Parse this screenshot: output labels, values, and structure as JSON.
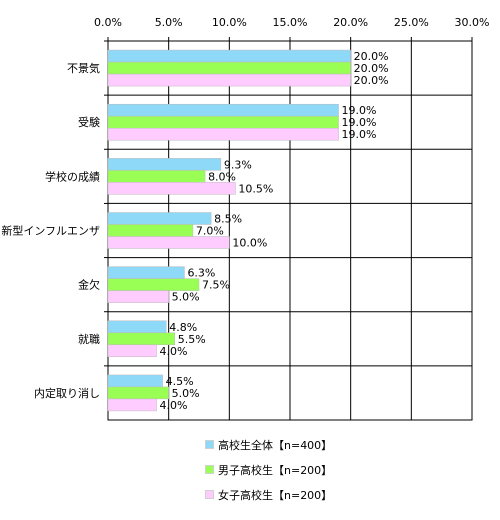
{
  "chart_data": {
    "type": "bar",
    "orientation": "horizontal",
    "categories": [
      "不景気",
      "受験",
      "学校の成績",
      "新型インフルエンザ",
      "金欠",
      "就職",
      "内定取り消し"
    ],
    "series": [
      {
        "name": "高校生全体【n=400】",
        "color": "#8ed8f8",
        "values": [
          20.0,
          19.0,
          9.3,
          8.5,
          6.3,
          4.8,
          4.5
        ]
      },
      {
        "name": "男子高校生【n=200】",
        "color": "#99ff55",
        "values": [
          20.0,
          19.0,
          8.0,
          7.0,
          7.5,
          5.5,
          5.0
        ]
      },
      {
        "name": "女子高校生【n=200】",
        "color": "#ffccff",
        "values": [
          20.0,
          19.0,
          10.5,
          10.0,
          5.0,
          4.0,
          4.0
        ]
      }
    ],
    "xlim": [
      0,
      30
    ],
    "ticks": [
      0,
      5,
      10,
      15,
      20,
      25,
      30
    ],
    "tick_labels": [
      "0.0%",
      "5.0%",
      "10.0%",
      "15.0%",
      "20.0%",
      "25.0%",
      "30.0%"
    ],
    "value_suffix": "%",
    "x_axis_position": "top",
    "grid": true,
    "legend_position": "bottom"
  }
}
